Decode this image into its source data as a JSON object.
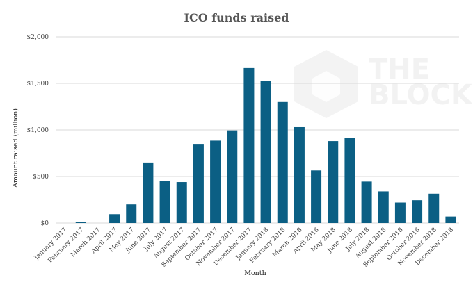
{
  "chart_data": {
    "type": "bar",
    "title": "ICO funds raised",
    "xlabel": "Month",
    "ylabel": "Amount raised (million)",
    "ylim": [
      0,
      2000
    ],
    "yticks": [
      0,
      500,
      1000,
      1500,
      2000
    ],
    "ytick_labels": [
      "$0",
      "$500",
      "$1,000",
      "$1,500",
      "$2,000"
    ],
    "grid": true,
    "bar_color": "#0b5f84",
    "categories": [
      "January 2017",
      "February 2017",
      "March 2017",
      "April 2017",
      "May 2017",
      "June 2017",
      "July 2017",
      "August 2017",
      "September 2017",
      "October 2017",
      "November 2017",
      "December 2017",
      "January 2018",
      "February 2018",
      "March 2018",
      "April 2018",
      "May 2018",
      "June 2018",
      "July 2018",
      "August 2018",
      "September 2018",
      "October 2018",
      "November 2018",
      "December 2018"
    ],
    "values": [
      0,
      12,
      0,
      95,
      200,
      650,
      450,
      440,
      850,
      885,
      995,
      1665,
      1525,
      1300,
      1030,
      565,
      880,
      915,
      445,
      340,
      220,
      245,
      315,
      70
    ]
  },
  "watermark": {
    "line1": "THE",
    "line2": "BLOCK"
  }
}
